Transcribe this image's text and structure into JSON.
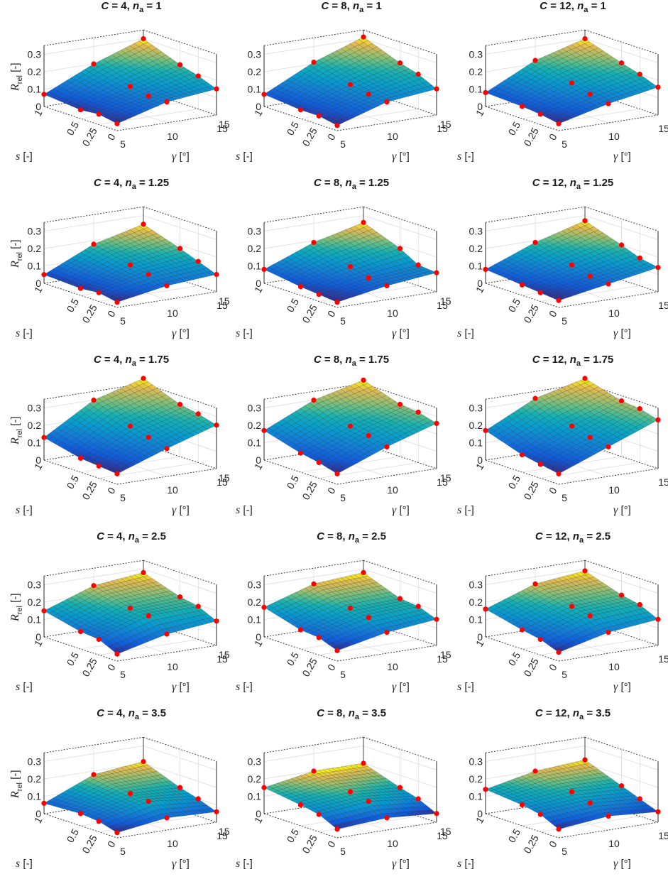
{
  "figure": {
    "columns": [
      "C = 4",
      "C = 8",
      "C = 12"
    ],
    "rows": [
      "n_a = 1",
      "n_a = 1.25",
      "n_a = 1.75",
      "n_a = 2.5",
      "n_a = 3.5"
    ],
    "marker_color": "#ff0000",
    "colormap": "parula",
    "axis_labels": {
      "z": "R_rel [-]",
      "z_main": "R",
      "z_sub": "rel",
      "z_unit": " [-]",
      "s": "s [-]",
      "s_sym": "s",
      "s_unit": " [-]",
      "gamma": "γ [°]",
      "gamma_sym": "γ",
      "gamma_unit": " [°]"
    },
    "z_ticks": [
      "0",
      "0.1",
      "0.2",
      "0.3"
    ],
    "s_ticks": [
      "1",
      "0.5",
      "0.25",
      "0"
    ],
    "gamma_ticks": [
      "5",
      "10",
      "15"
    ]
  },
  "chart_data": [
    {
      "title": "C = 4,  n_a = 1",
      "C": 4,
      "n_a": 1,
      "type": "surface",
      "xlabel": "γ [°]",
      "ylabel": "s [-]",
      "zlabel": "R_rel [-]",
      "zlim": [
        0,
        0.33
      ],
      "s": [
        1,
        0.5,
        0.25,
        0
      ],
      "gamma": [
        5,
        10,
        15
      ],
      "z": [
        [
          0.07,
          0.2,
          0.3
        ],
        [
          0.05,
          0.14,
          0.22
        ],
        [
          0.06,
          0.12,
          0.19
        ],
        [
          0.04,
          0.12,
          0.15
        ]
      ]
    },
    {
      "title": "C = 8,  n_a = 1",
      "C": 8,
      "n_a": 1,
      "type": "surface",
      "xlabel": "γ [°]",
      "ylabel": "s [-]",
      "zlabel": "R_rel [-]",
      "zlim": [
        0,
        0.33
      ],
      "s": [
        1,
        0.5,
        0.25,
        0
      ],
      "gamma": [
        5,
        10,
        15
      ],
      "z": [
        [
          0.07,
          0.21,
          0.31
        ],
        [
          0.05,
          0.15,
          0.23
        ],
        [
          0.05,
          0.13,
          0.2
        ],
        [
          0.03,
          0.12,
          0.15
        ]
      ]
    },
    {
      "title": "C = 12,  n_a = 1",
      "C": 12,
      "n_a": 1,
      "type": "surface",
      "xlabel": "γ [°]",
      "ylabel": "s [-]",
      "zlabel": "R_rel [-]",
      "zlim": [
        0,
        0.33
      ],
      "s": [
        1,
        0.5,
        0.25,
        0
      ],
      "gamma": [
        5,
        10,
        15
      ],
      "z": [
        [
          0.08,
          0.22,
          0.3
        ],
        [
          0.07,
          0.16,
          0.23
        ],
        [
          0.06,
          0.13,
          0.2
        ],
        [
          0.04,
          0.11,
          0.16
        ]
      ]
    },
    {
      "title": "C = 4,  n_a = 1.25",
      "C": 4,
      "n_a": 1.25,
      "type": "surface",
      "xlabel": "γ [°]",
      "ylabel": "s [-]",
      "zlabel": "R_rel [-]",
      "zlim": [
        0,
        0.33
      ],
      "s": [
        1,
        0.5,
        0.25,
        0
      ],
      "gamma": [
        5,
        10,
        15
      ],
      "z": [
        [
          0.05,
          0.18,
          0.25
        ],
        [
          0.04,
          0.13,
          0.18
        ],
        [
          0.05,
          0.11,
          0.14
        ],
        [
          0.03,
          0.08,
          0.1
        ]
      ]
    },
    {
      "title": "C = 8,  n_a = 1.25",
      "C": 8,
      "n_a": 1.25,
      "type": "surface",
      "xlabel": "γ [°]",
      "ylabel": "s [-]",
      "zlabel": "R_rel [-]",
      "zlim": [
        0,
        0.33
      ],
      "s": [
        1,
        0.5,
        0.25,
        0
      ],
      "gamma": [
        5,
        10,
        15
      ],
      "z": [
        [
          0.08,
          0.19,
          0.26
        ],
        [
          0.05,
          0.12,
          0.18
        ],
        [
          0.04,
          0.09,
          0.12
        ],
        [
          0.03,
          0.08,
          0.11
        ]
      ]
    },
    {
      "title": "C = 12,  n_a = 1.25",
      "C": 12,
      "n_a": 1.25,
      "type": "surface",
      "xlabel": "γ [°]",
      "ylabel": "s [-]",
      "zlabel": "R_rel [-]",
      "zlim": [
        0,
        0.33
      ],
      "s": [
        1,
        0.5,
        0.25,
        0
      ],
      "gamma": [
        5,
        10,
        15
      ],
      "z": [
        [
          0.08,
          0.19,
          0.27
        ],
        [
          0.06,
          0.13,
          0.2
        ],
        [
          0.05,
          0.1,
          0.16
        ],
        [
          0.04,
          0.09,
          0.14
        ]
      ]
    },
    {
      "title": "C = 4,  n_a = 1.75",
      "C": 4,
      "n_a": 1.75,
      "type": "surface",
      "xlabel": "γ [°]",
      "ylabel": "s [-]",
      "zlabel": "R_rel [-]",
      "zlim": [
        0,
        0.33
      ],
      "s": [
        1,
        0.5,
        0.25,
        0
      ],
      "gamma": [
        5,
        10,
        15
      ],
      "z": [
        [
          0.13,
          0.3,
          0.38
        ],
        [
          0.08,
          0.22,
          0.3
        ],
        [
          0.07,
          0.19,
          0.28
        ],
        [
          0.06,
          0.16,
          0.25
        ]
      ]
    },
    {
      "title": "C = 8,  n_a = 1.75",
      "C": 8,
      "n_a": 1.75,
      "type": "surface",
      "xlabel": "γ [°]",
      "ylabel": "s [-]",
      "zlabel": "R_rel [-]",
      "zlim": [
        0,
        0.33
      ],
      "s": [
        1,
        0.5,
        0.25,
        0
      ],
      "gamma": [
        5,
        10,
        15
      ],
      "z": [
        [
          0.17,
          0.3,
          0.37
        ],
        [
          0.11,
          0.22,
          0.3
        ],
        [
          0.09,
          0.2,
          0.29
        ],
        [
          0.06,
          0.17,
          0.26
        ]
      ]
    },
    {
      "title": "C = 12,  n_a = 1.75",
      "C": 12,
      "n_a": 1.75,
      "type": "surface",
      "xlabel": "γ [°]",
      "ylabel": "s [-]",
      "zlabel": "R_rel [-]",
      "zlim": [
        0,
        0.33
      ],
      "s": [
        1,
        0.5,
        0.25,
        0
      ],
      "gamma": [
        5,
        10,
        15
      ],
      "z": [
        [
          0.17,
          0.31,
          0.38
        ],
        [
          0.1,
          0.22,
          0.32
        ],
        [
          0.08,
          0.19,
          0.31
        ],
        [
          0.06,
          0.17,
          0.28
        ]
      ]
    },
    {
      "title": "C = 4,  n_a = 2.5",
      "C": 4,
      "n_a": 2.5,
      "type": "surface",
      "xlabel": "γ [°]",
      "ylabel": "s [-]",
      "zlabel": "R_rel [-]",
      "zlim": [
        0,
        0.33
      ],
      "s": [
        1,
        0.5,
        0.25,
        0
      ],
      "gamma": [
        5,
        10,
        15
      ],
      "z": [
        [
          0.15,
          0.25,
          0.28
        ],
        [
          0.1,
          0.19,
          0.21
        ],
        [
          0.09,
          0.18,
          0.19
        ],
        [
          0.04,
          0.11,
          0.14
        ]
      ]
    },
    {
      "title": "C = 8,  n_a = 2.5",
      "C": 8,
      "n_a": 2.5,
      "type": "surface",
      "xlabel": "γ [°]",
      "ylabel": "s [-]",
      "zlabel": "R_rel [-]",
      "zlim": [
        0,
        0.33
      ],
      "s": [
        1,
        0.5,
        0.25,
        0
      ],
      "gamma": [
        5,
        10,
        15
      ],
      "z": [
        [
          0.17,
          0.26,
          0.28
        ],
        [
          0.11,
          0.19,
          0.2
        ],
        [
          0.1,
          0.17,
          0.19
        ],
        [
          0.06,
          0.12,
          0.15
        ]
      ]
    },
    {
      "title": "C = 12,  n_a = 2.5",
      "C": 12,
      "n_a": 2.5,
      "type": "surface",
      "xlabel": "γ [°]",
      "ylabel": "s [-]",
      "zlabel": "R_rel [-]",
      "zlim": [
        0,
        0.33
      ],
      "s": [
        1,
        0.5,
        0.25,
        0
      ],
      "gamma": [
        5,
        10,
        15
      ],
      "z": [
        [
          0.16,
          0.26,
          0.29
        ],
        [
          0.11,
          0.2,
          0.22
        ],
        [
          0.09,
          0.18,
          0.2
        ],
        [
          0.05,
          0.12,
          0.15
        ]
      ]
    },
    {
      "title": "C = 4,  n_a = 3.5",
      "C": 4,
      "n_a": 3.5,
      "type": "surface",
      "xlabel": "γ [°]",
      "ylabel": "s [-]",
      "zlabel": "R_rel [-]",
      "zlim": [
        0,
        0.33
      ],
      "s": [
        1,
        0.5,
        0.25,
        0
      ],
      "gamma": [
        5,
        10,
        15
      ],
      "z": [
        [
          0.06,
          0.18,
          0.21
        ],
        [
          0.07,
          0.14,
          0.13
        ],
        [
          0.06,
          0.13,
          0.1
        ],
        [
          0.03,
          0.07,
          0.06
        ]
      ]
    },
    {
      "title": "C = 8,  n_a = 3.5",
      "C": 8,
      "n_a": 3.5,
      "type": "surface",
      "xlabel": "γ [°]",
      "ylabel": "s [-]",
      "zlabel": "R_rel [-]",
      "zlim": [
        0,
        0.33
      ],
      "s": [
        1,
        0.5,
        0.25,
        0
      ],
      "gamma": [
        5,
        10,
        15
      ],
      "z": [
        [
          0.15,
          0.2,
          0.2
        ],
        [
          0.12,
          0.15,
          0.13
        ],
        [
          0.1,
          0.13,
          0.1
        ],
        [
          0.05,
          0.07,
          0.05
        ]
      ]
    },
    {
      "title": "C = 12,  n_a = 3.5",
      "C": 12,
      "n_a": 3.5,
      "type": "surface",
      "xlabel": "γ [°]",
      "ylabel": "s [-]",
      "zlabel": "R_rel [-]",
      "zlim": [
        0,
        0.33
      ],
      "s": [
        1,
        0.5,
        0.25,
        0
      ],
      "gamma": [
        5,
        10,
        15
      ],
      "z": [
        [
          0.14,
          0.2,
          0.22
        ],
        [
          0.12,
          0.15,
          0.14
        ],
        [
          0.1,
          0.12,
          0.1
        ],
        [
          0.05,
          0.08,
          0.06
        ]
      ]
    }
  ]
}
